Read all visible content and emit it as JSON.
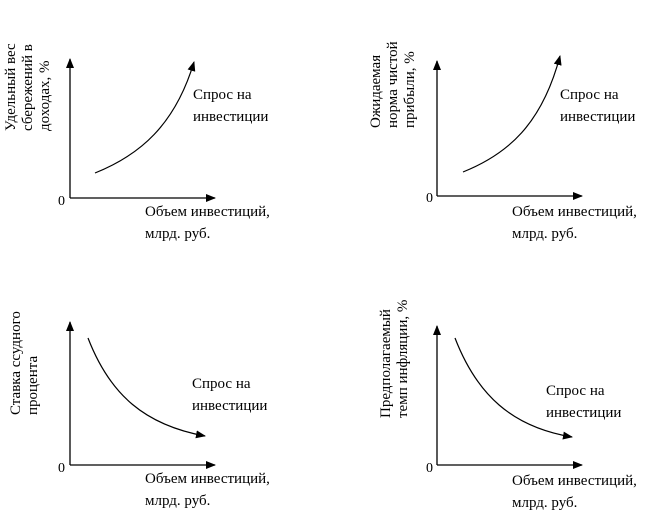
{
  "panels": [
    {
      "ylabel_lines": [
        "Удельный вес",
        "сбережений в",
        "доходах, %"
      ],
      "xlabel_lines": [
        "Объем инвестиций,",
        "млрд. руб."
      ],
      "curve_label_lines": [
        "Спрос на",
        "инвестиции"
      ],
      "origin": "0",
      "trend": "increasing"
    },
    {
      "ylabel_lines": [
        "Ожидаемая",
        "норма чистой",
        "прибыли, %"
      ],
      "xlabel_lines": [
        "Объем инвестиций,",
        "млрд. руб."
      ],
      "curve_label_lines": [
        "Спрос на",
        "инвестиции"
      ],
      "origin": "0",
      "trend": "increasing"
    },
    {
      "ylabel_lines": [
        "Ставка ссудного",
        "процента"
      ],
      "xlabel_lines": [
        "Объем инвестиций,",
        "млрд. руб."
      ],
      "curve_label_lines": [
        "Спрос на",
        "инвестиции"
      ],
      "origin": "0",
      "trend": "decreasing"
    },
    {
      "ylabel_lines": [
        "Предполагаемый",
        "темп инфляции, %"
      ],
      "xlabel_lines": [
        "Объем инвестиций,",
        "млрд. руб."
      ],
      "curve_label_lines": [
        "Спрос на",
        "инвестиции"
      ],
      "origin": "0",
      "trend": "decreasing"
    }
  ]
}
